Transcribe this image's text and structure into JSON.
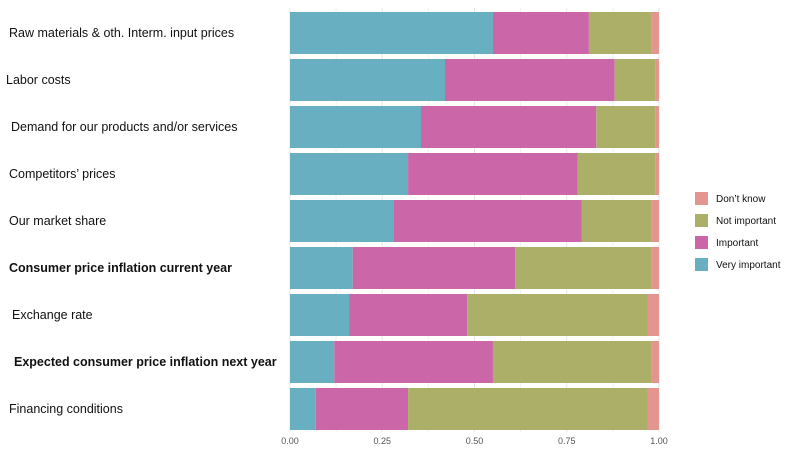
{
  "chart_data": {
    "type": "bar",
    "orientation": "horizontal",
    "stacked": true,
    "categories": [
      "Raw materials & oth. Interm. input prices",
      "Labor costs",
      "Demand for our products and/or services",
      "Competitors’ prices",
      "Our market share",
      "Consumer price inflation current year",
      "Exchange rate",
      "Expected consumer price inflation next year",
      "Financing conditions"
    ],
    "bold_categories": [
      "Consumer price inflation current year",
      "Expected consumer price inflation next year"
    ],
    "series": [
      {
        "name": "Very important",
        "color": "#67afc1",
        "values": [
          0.55,
          0.42,
          0.355,
          0.32,
          0.28,
          0.17,
          0.16,
          0.12,
          0.07
        ]
      },
      {
        "name": "Important",
        "color": "#cb67a8",
        "values": [
          0.26,
          0.46,
          0.475,
          0.46,
          0.51,
          0.44,
          0.32,
          0.43,
          0.25
        ]
      },
      {
        "name": "Not important",
        "color": "#abaf68",
        "values": [
          0.17,
          0.11,
          0.16,
          0.21,
          0.19,
          0.37,
          0.49,
          0.43,
          0.65
        ]
      },
      {
        "name": "Don’t know",
        "color": "#e3968f",
        "values": [
          0.02,
          0.01,
          0.01,
          0.01,
          0.02,
          0.02,
          0.03,
          0.02,
          0.03
        ]
      }
    ],
    "legend_order": [
      "Don’t know",
      "Not important",
      "Important",
      "Very important"
    ],
    "xticks": [
      "0.00",
      "0.25",
      "0.50",
      "0.75",
      "1.00"
    ],
    "xlim": [
      0,
      1
    ],
    "title": "",
    "xlabel": "",
    "ylabel": "",
    "grid": true,
    "legend_position": "right"
  }
}
